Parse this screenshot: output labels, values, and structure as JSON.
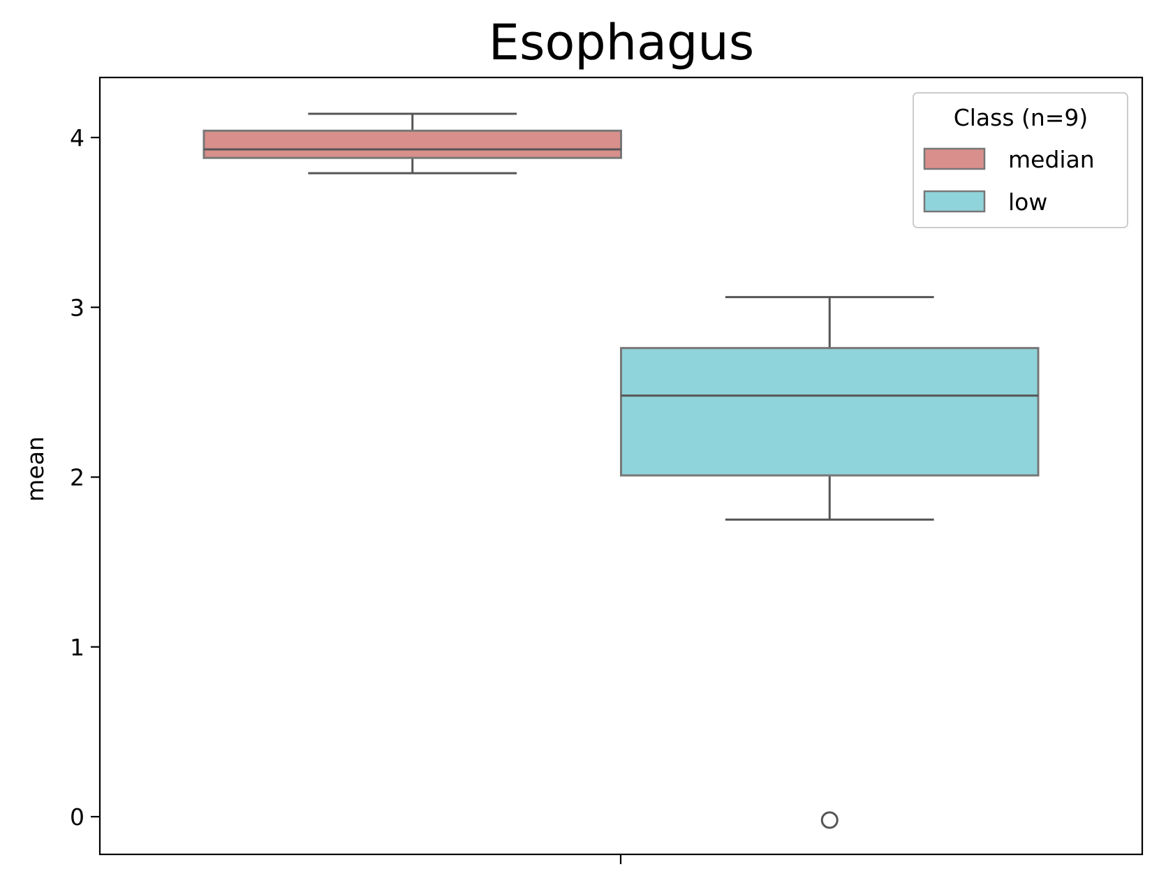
{
  "chart_data": {
    "type": "box",
    "title": "Esophagus",
    "xlabel": "",
    "ylabel": "mean",
    "ylim": [
      -0.22,
      4.35
    ],
    "yticks": [
      0,
      1,
      2,
      3,
      4
    ],
    "grid": false,
    "legend": {
      "title": "Class (n=9)",
      "placement": "top-right"
    },
    "series": [
      {
        "name": "median",
        "color": "#d98f8c",
        "whisker_low": 3.79,
        "q1": 3.88,
        "median": 3.93,
        "q3": 4.04,
        "whisker_high": 4.14,
        "outliers": []
      },
      {
        "name": "low",
        "color": "#8fd4da",
        "whisker_low": 1.75,
        "q1": 2.01,
        "median": 2.48,
        "q3": 2.76,
        "whisker_high": 3.06,
        "outliers": [
          -0.02
        ]
      }
    ],
    "line_color": "#555555"
  }
}
